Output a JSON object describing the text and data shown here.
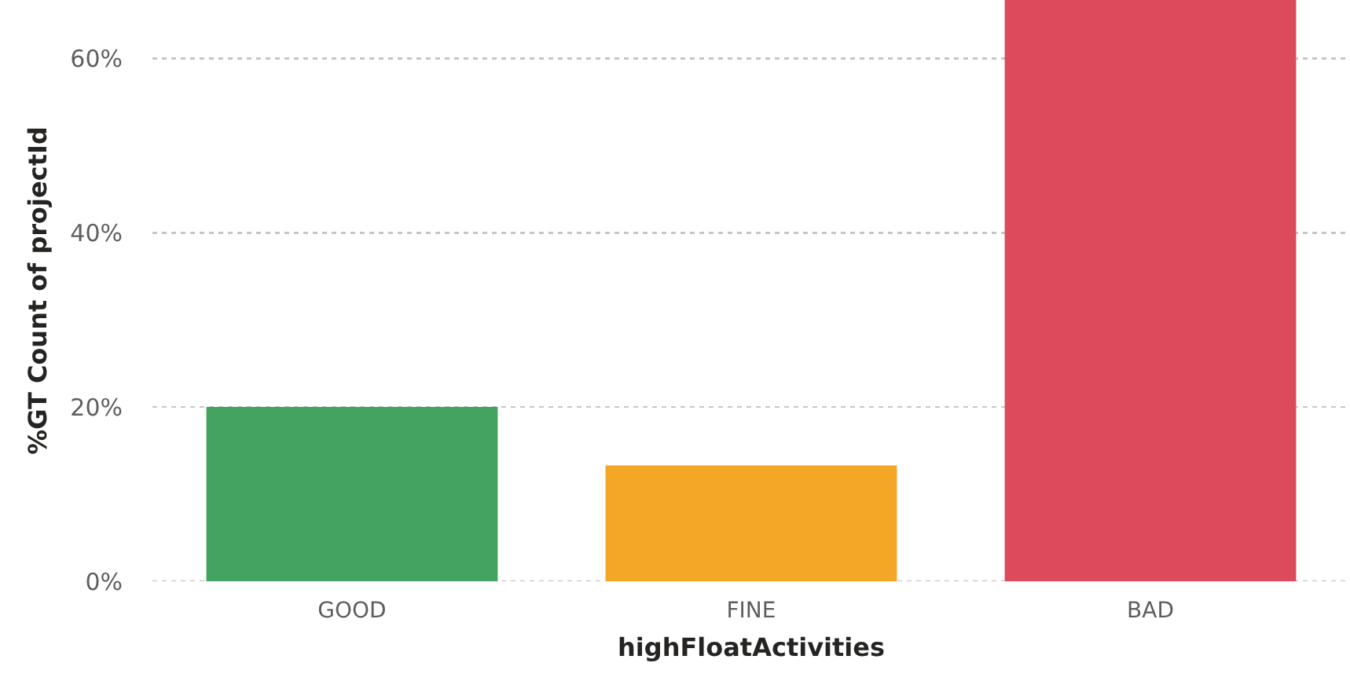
{
  "chart_data": {
    "type": "bar",
    "xlabel": "highFloatActivities",
    "ylabel": "%GT Count of projectId",
    "categories": [
      "GOOD",
      "FINE",
      "BAD"
    ],
    "values": [
      20,
      13.3,
      66.7
    ],
    "colors": [
      "#44a361",
      "#f4a626",
      "#dc4a5b"
    ],
    "ylim": [
      0,
      66.7
    ],
    "yticks": [
      {
        "value": 0,
        "label": "0%"
      },
      {
        "value": 20,
        "label": "20%"
      },
      {
        "value": 40,
        "label": "40%"
      },
      {
        "value": 60,
        "label": "60%"
      }
    ],
    "grid": "y"
  }
}
